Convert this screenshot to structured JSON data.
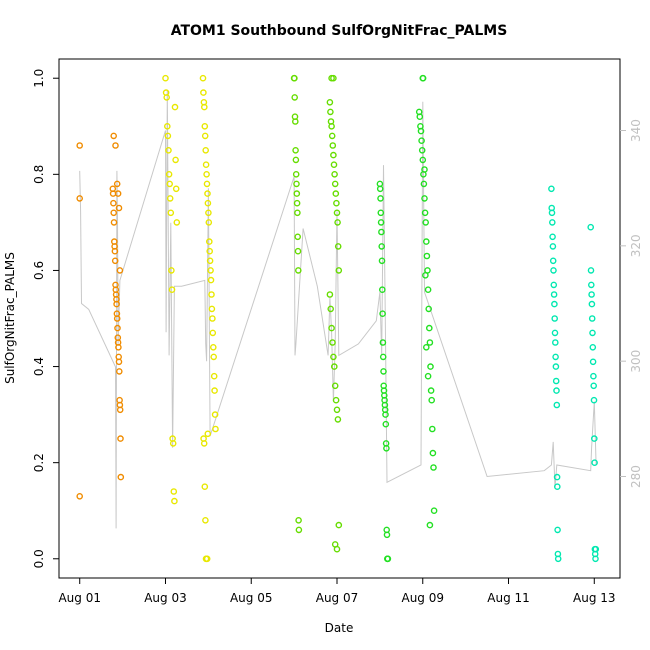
{
  "chart_data": {
    "type": "scatter",
    "title": "ATOM1 Southbound SulfOrgNitFrac_PALMS",
    "xlabel": "Date",
    "ylabel": "SulfOrgNitFrac_PALMS",
    "xlim": [
      "2016-07-31T12:24",
      "2016-08-13T14:24"
    ],
    "ylim": [
      -0.04,
      1.04
    ],
    "y2lim": [
      262.4,
      352.4
    ],
    "x_ticks": [
      {
        "date": "2016-08-01",
        "label": "Aug 01"
      },
      {
        "date": "2016-08-03",
        "label": "Aug 03"
      },
      {
        "date": "2016-08-05",
        "label": "Aug 05"
      },
      {
        "date": "2016-08-07",
        "label": "Aug 07"
      },
      {
        "date": "2016-08-09",
        "label": "Aug 09"
      },
      {
        "date": "2016-08-11",
        "label": "Aug 11"
      },
      {
        "date": "2016-08-13",
        "label": "Aug 13"
      }
    ],
    "y_ticks": [
      {
        "value": 0.0,
        "label": "0.0"
      },
      {
        "value": 0.2,
        "label": "0.2"
      },
      {
        "value": 0.4,
        "label": "0.4"
      },
      {
        "value": 0.6,
        "label": "0.6"
      },
      {
        "value": 0.8,
        "label": "0.8"
      },
      {
        "value": 1.0,
        "label": "1.0"
      }
    ],
    "y2_ticks": [
      {
        "value": 280,
        "label": "280"
      },
      {
        "value": 300,
        "label": "300"
      },
      {
        "value": 320,
        "label": "320"
      },
      {
        "value": 340,
        "label": "340"
      }
    ],
    "grid": false,
    "legend": "none",
    "line_color": "#c8c8c8",
    "secondary_series": {
      "axis": "right",
      "x": [
        "2016-08-01T00:00",
        "2016-08-01T00:30",
        "2016-08-01T01:00",
        "2016-08-01T05:00",
        "2016-08-01T20:00",
        "2016-08-01T20:20",
        "2016-08-01T20:50",
        "2016-08-01T21:10",
        "2016-08-01T21:30",
        "2016-08-01T22:30",
        "2016-08-03T00:00",
        "2016-08-03T00:20",
        "2016-08-03T01:00",
        "2016-08-03T02:00",
        "2016-08-03T03:00",
        "2016-08-03T04:00",
        "2016-08-03T05:00",
        "2016-08-03T09:00",
        "2016-08-03T22:00",
        "2016-08-03T22:30",
        "2016-08-03T23:00",
        "2016-08-04T00:00",
        "2016-08-04T01:00",
        "2016-08-06T00:00",
        "2016-08-06T00:30",
        "2016-08-06T01:00",
        "2016-08-06T05:00",
        "2016-08-06T13:00",
        "2016-08-06T19:00",
        "2016-08-06T20:00",
        "2016-08-06T21:00",
        "2016-08-06T22:00",
        "2016-08-06T23:00",
        "2016-08-07T00:00",
        "2016-08-07T01:00",
        "2016-08-07T12:00",
        "2016-08-07T22:00",
        "2016-08-08T00:00",
        "2016-08-08T01:00",
        "2016-08-08T02:00",
        "2016-08-08T03:00",
        "2016-08-08T04:00",
        "2016-08-08T23:00",
        "2016-08-09T00:00",
        "2016-08-09T01:00",
        "2016-08-10T12:00",
        "2016-08-11T20:00",
        "2016-08-12T00:00",
        "2016-08-12T01:00",
        "2016-08-12T02:00",
        "2016-08-12T03:00",
        "2016-08-12T22:00",
        "2016-08-12T22:30",
        "2016-08-13T00:00",
        "2016-08-13T01:00"
      ],
      "y": [
        333,
        326,
        310,
        309,
        299,
        271,
        333,
        325,
        303,
        314,
        340,
        305,
        347,
        301,
        324,
        285,
        313,
        313,
        314,
        303,
        300,
        330,
        287,
        332,
        301,
        303,
        323,
        313,
        301,
        311,
        305,
        293,
        303,
        326,
        301,
        303,
        307,
        312,
        301,
        334,
        309,
        279,
        282,
        345,
        312,
        280,
        281,
        282,
        286,
        278,
        282,
        281,
        285,
        293,
        282
      ]
    },
    "series": [
      {
        "color": "#f08c00",
        "x": [
          "2016-08-01T00:00",
          "2016-08-01T00:00",
          "2016-08-01T00:00",
          "2016-08-01T18:30",
          "2016-08-01T18:40",
          "2016-08-01T18:50",
          "2016-08-01T19:00",
          "2016-08-01T19:10",
          "2016-08-01T19:20",
          "2016-08-01T19:30",
          "2016-08-01T19:40",
          "2016-08-01T19:50",
          "2016-08-01T20:00",
          "2016-08-01T20:10",
          "2016-08-01T20:20",
          "2016-08-01T20:30",
          "2016-08-01T20:40",
          "2016-08-01T20:50",
          "2016-08-01T21:00",
          "2016-08-01T21:10",
          "2016-08-01T21:20",
          "2016-08-01T21:30",
          "2016-08-01T21:40",
          "2016-08-01T21:50",
          "2016-08-01T22:00",
          "2016-08-01T22:10",
          "2016-08-01T22:20",
          "2016-08-01T22:30",
          "2016-08-01T22:40",
          "2016-08-01T22:50",
          "2016-08-01T23:00",
          "2016-08-01T19:00",
          "2016-08-01T20:00",
          "2016-08-01T21:00",
          "2016-08-01T21:30",
          "2016-08-01T22:00",
          "2016-08-01T22:30"
        ],
        "y": [
          0.86,
          0.75,
          0.13,
          0.77,
          0.76,
          0.74,
          0.72,
          0.7,
          0.66,
          0.65,
          0.64,
          0.62,
          0.57,
          0.56,
          0.55,
          0.54,
          0.53,
          0.51,
          0.5,
          0.48,
          0.46,
          0.45,
          0.44,
          0.42,
          0.41,
          0.39,
          0.33,
          0.32,
          0.31,
          0.25,
          0.17,
          0.88,
          0.86,
          0.78,
          0.76,
          0.73,
          0.6
        ]
      },
      {
        "color": "#e8e800",
        "x": [
          "2016-08-03T00:00",
          "2016-08-03T00:20",
          "2016-08-03T00:40",
          "2016-08-03T01:00",
          "2016-08-03T01:20",
          "2016-08-03T01:40",
          "2016-08-03T02:00",
          "2016-08-03T02:20",
          "2016-08-03T02:40",
          "2016-08-03T03:00",
          "2016-08-03T03:20",
          "2016-08-03T03:40",
          "2016-08-03T04:00",
          "2016-08-03T04:20",
          "2016-08-03T04:40",
          "2016-08-03T05:00",
          "2016-08-03T05:20",
          "2016-08-03T05:40",
          "2016-08-03T06:00",
          "2016-08-03T06:20",
          "2016-08-03T21:00",
          "2016-08-03T21:15",
          "2016-08-03T21:30",
          "2016-08-03T21:45",
          "2016-08-03T22:00",
          "2016-08-03T22:15",
          "2016-08-03T22:30",
          "2016-08-03T22:45",
          "2016-08-03T23:00",
          "2016-08-03T23:15",
          "2016-08-03T23:30",
          "2016-08-03T23:45",
          "2016-08-04T00:00",
          "2016-08-04T00:15",
          "2016-08-04T00:30",
          "2016-08-04T00:45",
          "2016-08-04T01:00",
          "2016-08-04T01:15",
          "2016-08-04T01:30",
          "2016-08-04T01:45",
          "2016-08-04T02:00",
          "2016-08-04T02:15",
          "2016-08-04T02:30",
          "2016-08-04T02:45",
          "2016-08-04T03:00",
          "2016-08-04T03:15",
          "2016-08-04T03:30",
          "2016-08-04T03:45",
          "2016-08-04T04:00"
        ],
        "y": [
          1.0,
          0.97,
          0.96,
          0.9,
          0.88,
          0.85,
          0.8,
          0.78,
          0.75,
          0.72,
          0.6,
          0.56,
          0.25,
          0.24,
          0.14,
          0.12,
          0.94,
          0.83,
          0.77,
          0.7,
          1.0,
          0.97,
          0.95,
          0.94,
          0.9,
          0.88,
          0.85,
          0.82,
          0.8,
          0.78,
          0.76,
          0.74,
          0.72,
          0.7,
          0.66,
          0.64,
          0.62,
          0.6,
          0.58,
          0.55,
          0.52,
          0.5,
          0.47,
          0.44,
          0.42,
          0.38,
          0.35,
          0.3,
          0.27
        ]
      },
      {
        "color": "#e8e800",
        "x": [
          "2016-08-03T21:20",
          "2016-08-03T21:40",
          "2016-08-03T22:00",
          "2016-08-03T22:20",
          "2016-08-03T22:40",
          "2016-08-03T23:00",
          "2016-08-03T23:20",
          "2016-08-03T23:40"
        ],
        "y": [
          0.25,
          0.24,
          0.15,
          0.08,
          0.0,
          0.0,
          0.0,
          0.26
        ]
      },
      {
        "color": "#66dd00",
        "x": [
          "2016-08-06T00:00",
          "2016-08-06T00:10",
          "2016-08-06T00:20",
          "2016-08-06T00:30",
          "2016-08-06T00:40",
          "2016-08-06T00:50",
          "2016-08-06T01:00",
          "2016-08-06T01:10",
          "2016-08-06T01:20",
          "2016-08-06T01:30",
          "2016-08-06T01:40",
          "2016-08-06T01:50",
          "2016-08-06T02:00",
          "2016-08-06T02:10",
          "2016-08-06T02:20",
          "2016-08-06T02:30",
          "2016-08-06T02:40",
          "2016-08-06T20:00",
          "2016-08-06T20:20",
          "2016-08-06T20:40",
          "2016-08-06T21:00",
          "2016-08-06T21:20",
          "2016-08-06T21:40",
          "2016-08-06T22:00",
          "2016-08-06T22:20",
          "2016-08-06T22:40",
          "2016-08-06T23:00",
          "2016-08-06T23:20",
          "2016-08-06T23:40",
          "2016-08-07T00:00",
          "2016-08-07T00:20",
          "2016-08-07T00:40",
          "2016-08-07T01:00",
          "2016-08-06T20:00",
          "2016-08-06T20:30",
          "2016-08-06T21:00",
          "2016-08-06T21:30",
          "2016-08-06T22:00",
          "2016-08-06T22:30",
          "2016-08-06T23:00",
          "2016-08-06T23:30",
          "2016-08-07T00:00",
          "2016-08-07T00:30",
          "2016-08-07T01:00",
          "2016-08-06T21:00",
          "2016-08-06T22:00",
          "2016-08-06T23:00",
          "2016-08-07T00:00"
        ],
        "y": [
          1.0,
          1.0,
          0.96,
          0.92,
          0.91,
          0.85,
          0.83,
          0.8,
          0.78,
          0.76,
          0.74,
          0.72,
          0.67,
          0.64,
          0.6,
          0.08,
          0.06,
          0.95,
          0.93,
          0.91,
          0.9,
          0.88,
          0.86,
          0.84,
          0.82,
          0.8,
          0.78,
          0.76,
          0.74,
          0.72,
          0.7,
          0.65,
          0.6,
          0.55,
          0.52,
          0.48,
          0.45,
          0.42,
          0.4,
          0.36,
          0.33,
          0.31,
          0.29,
          0.07,
          1.0,
          1.0,
          0.03,
          0.02
        ]
      },
      {
        "color": "#22e022",
        "x": [
          "2016-08-08T00:00",
          "2016-08-08T00:10",
          "2016-08-08T00:20",
          "2016-08-08T00:30",
          "2016-08-08T00:40",
          "2016-08-08T00:50",
          "2016-08-08T01:00",
          "2016-08-08T01:10",
          "2016-08-08T01:20",
          "2016-08-08T01:30",
          "2016-08-08T01:40",
          "2016-08-08T01:50",
          "2016-08-08T02:00",
          "2016-08-08T02:10",
          "2016-08-08T02:20",
          "2016-08-08T02:30",
          "2016-08-08T02:40",
          "2016-08-08T02:50",
          "2016-08-08T03:00",
          "2016-08-08T03:10",
          "2016-08-08T03:20",
          "2016-08-08T03:30",
          "2016-08-08T03:40",
          "2016-08-08T03:50",
          "2016-08-08T04:00",
          "2016-08-08T04:10",
          "2016-08-08T04:20",
          "2016-08-08T04:30",
          "2016-08-08T22:00",
          "2016-08-08T22:20",
          "2016-08-08T22:40",
          "2016-08-08T23:00",
          "2016-08-08T23:20",
          "2016-08-08T23:40",
          "2016-08-09T00:00",
          "2016-08-09T00:20",
          "2016-08-09T00:40",
          "2016-08-09T01:00",
          "2016-08-09T01:20",
          "2016-08-09T01:40",
          "2016-08-09T02:00",
          "2016-08-09T02:20",
          "2016-08-09T02:40",
          "2016-08-09T03:00",
          "2016-08-09T03:20",
          "2016-08-09T03:40",
          "2016-08-09T04:00",
          "2016-08-09T04:20",
          "2016-08-09T04:40",
          "2016-08-09T05:00",
          "2016-08-09T05:20",
          "2016-08-09T05:40",
          "2016-08-09T06:00",
          "2016-08-09T06:20"
        ],
        "y": [
          0.78,
          0.77,
          0.75,
          0.72,
          0.7,
          0.68,
          0.65,
          0.62,
          0.56,
          0.51,
          0.45,
          0.42,
          0.39,
          0.36,
          0.35,
          0.34,
          0.33,
          0.32,
          0.31,
          0.3,
          0.28,
          0.24,
          0.23,
          0.06,
          0.05,
          0.0,
          0.0,
          0.0,
          0.93,
          0.92,
          0.9,
          0.89,
          0.87,
          0.85,
          0.83,
          0.8,
          0.78,
          0.75,
          0.72,
          0.7,
          0.66,
          0.63,
          0.6,
          0.56,
          0.52,
          0.48,
          0.45,
          0.4,
          0.35,
          0.33,
          0.27,
          0.22,
          0.19,
          0.1
        ]
      },
      {
        "color": "#22e022",
        "x": [
          "2016-08-09T00:00",
          "2016-08-09T00:10",
          "2016-08-09T01:00",
          "2016-08-09T01:30",
          "2016-08-09T02:00",
          "2016-08-09T03:00",
          "2016-08-09T04:00"
        ],
        "y": [
          1.0,
          1.0,
          0.81,
          0.59,
          0.44,
          0.38,
          0.07
        ]
      },
      {
        "color": "#00e8b0",
        "x": [
          "2016-08-12T00:00",
          "2016-08-12T00:10",
          "2016-08-12T00:20",
          "2016-08-12T00:30",
          "2016-08-12T00:40",
          "2016-08-12T00:50",
          "2016-08-12T01:00",
          "2016-08-12T01:10",
          "2016-08-12T01:20",
          "2016-08-12T01:30",
          "2016-08-12T01:40",
          "2016-08-12T01:50",
          "2016-08-12T02:00",
          "2016-08-12T02:10",
          "2016-08-12T02:20",
          "2016-08-12T02:30",
          "2016-08-12T02:40",
          "2016-08-12T02:50",
          "2016-08-12T03:00",
          "2016-08-12T03:10",
          "2016-08-12T03:20",
          "2016-08-12T03:30",
          "2016-08-12T03:40",
          "2016-08-12T03:50",
          "2016-08-12T22:00",
          "2016-08-12T22:10",
          "2016-08-12T22:20",
          "2016-08-12T22:30",
          "2016-08-12T22:40",
          "2016-08-12T22:50",
          "2016-08-12T23:00",
          "2016-08-12T23:10",
          "2016-08-12T23:20",
          "2016-08-12T23:30",
          "2016-08-12T23:40",
          "2016-08-12T23:50",
          "2016-08-13T00:00",
          "2016-08-13T00:10",
          "2016-08-13T00:20",
          "2016-08-13T00:30",
          "2016-08-13T00:40",
          "2016-08-13T00:50"
        ],
        "y": [
          0.77,
          0.73,
          0.72,
          0.7,
          0.67,
          0.65,
          0.62,
          0.6,
          0.57,
          0.55,
          0.53,
          0.5,
          0.47,
          0.45,
          0.42,
          0.4,
          0.37,
          0.35,
          0.32,
          0.17,
          0.15,
          0.06,
          0.01,
          0.0,
          0.69,
          0.6,
          0.57,
          0.55,
          0.53,
          0.5,
          0.47,
          0.44,
          0.41,
          0.38,
          0.36,
          0.33,
          0.25,
          0.2,
          0.02,
          0.01,
          0.0,
          0.02
        ]
      }
    ]
  }
}
